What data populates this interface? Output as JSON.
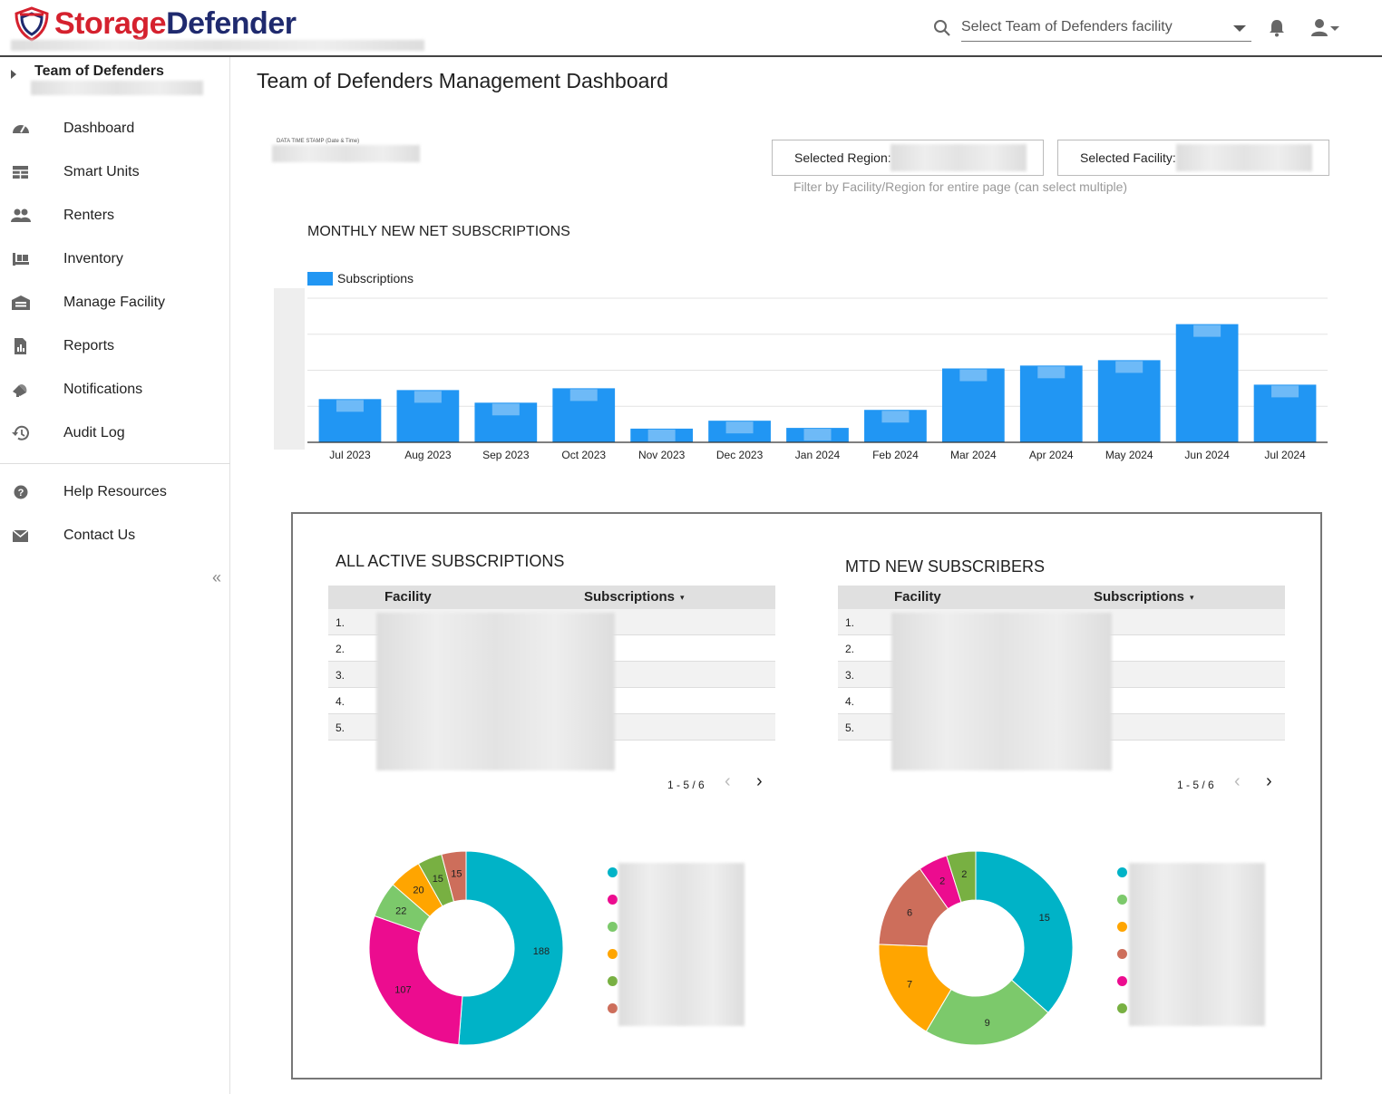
{
  "header": {
    "brand_part1": "Storage",
    "brand_part2": "Defender",
    "facility_select_placeholder": "Select Team of Defenders facility"
  },
  "sidebar": {
    "team_name": "Team of Defenders",
    "items": [
      {
        "label": "Dashboard",
        "icon": "dashboard-icon"
      },
      {
        "label": "Smart Units",
        "icon": "grid-icon"
      },
      {
        "label": "Renters",
        "icon": "people-icon"
      },
      {
        "label": "Inventory",
        "icon": "inventory-icon"
      },
      {
        "label": "Manage Facility",
        "icon": "warehouse-icon"
      },
      {
        "label": "Reports",
        "icon": "report-icon"
      },
      {
        "label": "Notifications",
        "icon": "megaphone-icon"
      },
      {
        "label": "Audit Log",
        "icon": "history-icon"
      }
    ],
    "secondary_items": [
      {
        "label": "Help Resources",
        "icon": "help-icon"
      },
      {
        "label": "Contact Us",
        "icon": "mail-icon"
      }
    ],
    "collapse_glyph": "«"
  },
  "main": {
    "page_title": "Team of Defenders Management Dashboard",
    "timestamp_label": "DATA TIME STAMP (Date & Time)",
    "filters": {
      "region_label": "Selected Region:",
      "facility_label": "Selected Facility:",
      "hint": "Filter by Facility/Region for entire page (can select multiple)"
    }
  },
  "chart_data": [
    {
      "type": "bar",
      "title": "MONTHLY NEW NET SUBSCRIPTIONS",
      "legend": "Subscriptions",
      "legend_position": "top-left",
      "grid": true,
      "categories": [
        "Jul 2023",
        "Aug 2023",
        "Sep 2023",
        "Oct 2023",
        "Nov 2023",
        "Dec 2023",
        "Jan 2024",
        "Feb 2024",
        "Mar 2024",
        "Apr 2024",
        "May 2024",
        "Jun 2024",
        "Jul 2024"
      ],
      "series": [
        {
          "name": "Subscriptions",
          "values": [
            12,
            14.5,
            11,
            15,
            3.8,
            6,
            4,
            9,
            20.5,
            21.3,
            22.8,
            32.8,
            16
          ]
        }
      ],
      "ylim": [
        0,
        40
      ],
      "color": "#2196f3"
    },
    {
      "type": "pie",
      "title": "ALL ACTIVE SUBSCRIPTIONS",
      "values": [
        188,
        107,
        22,
        20,
        15,
        15
      ],
      "colors": [
        "#00b3c7",
        "#ec0c8f",
        "#7cc96b",
        "#ffa500",
        "#78b042",
        "#cd6e5b"
      ]
    },
    {
      "type": "pie",
      "title": "MTD NEW SUBSCRIBERS",
      "values": [
        15,
        9,
        7,
        6,
        2,
        2
      ],
      "colors": [
        "#00b3c7",
        "#7cc96b",
        "#ffa500",
        "#cd6e5b",
        "#ec0c8f",
        "#78b042"
      ]
    }
  ],
  "tables": {
    "active": {
      "title": "ALL ACTIVE SUBSCRIPTIONS",
      "col_facility": "Facility",
      "col_subscriptions": "Subscriptions",
      "sort_glyph": "▾",
      "rows": [
        "1.",
        "2.",
        "3.",
        "4.",
        "5."
      ],
      "pager": "1 - 5 / 6"
    },
    "mtd": {
      "title": "MTD NEW SUBSCRIBERS",
      "col_facility": "Facility",
      "col_subscriptions": "Subscriptions",
      "sort_glyph": "▾",
      "rows": [
        "1.",
        "2.",
        "3.",
        "4.",
        "5."
      ],
      "pager": "1 - 5 / 6"
    }
  },
  "pager_glyphs": {
    "prev": "‹",
    "next": "›"
  }
}
